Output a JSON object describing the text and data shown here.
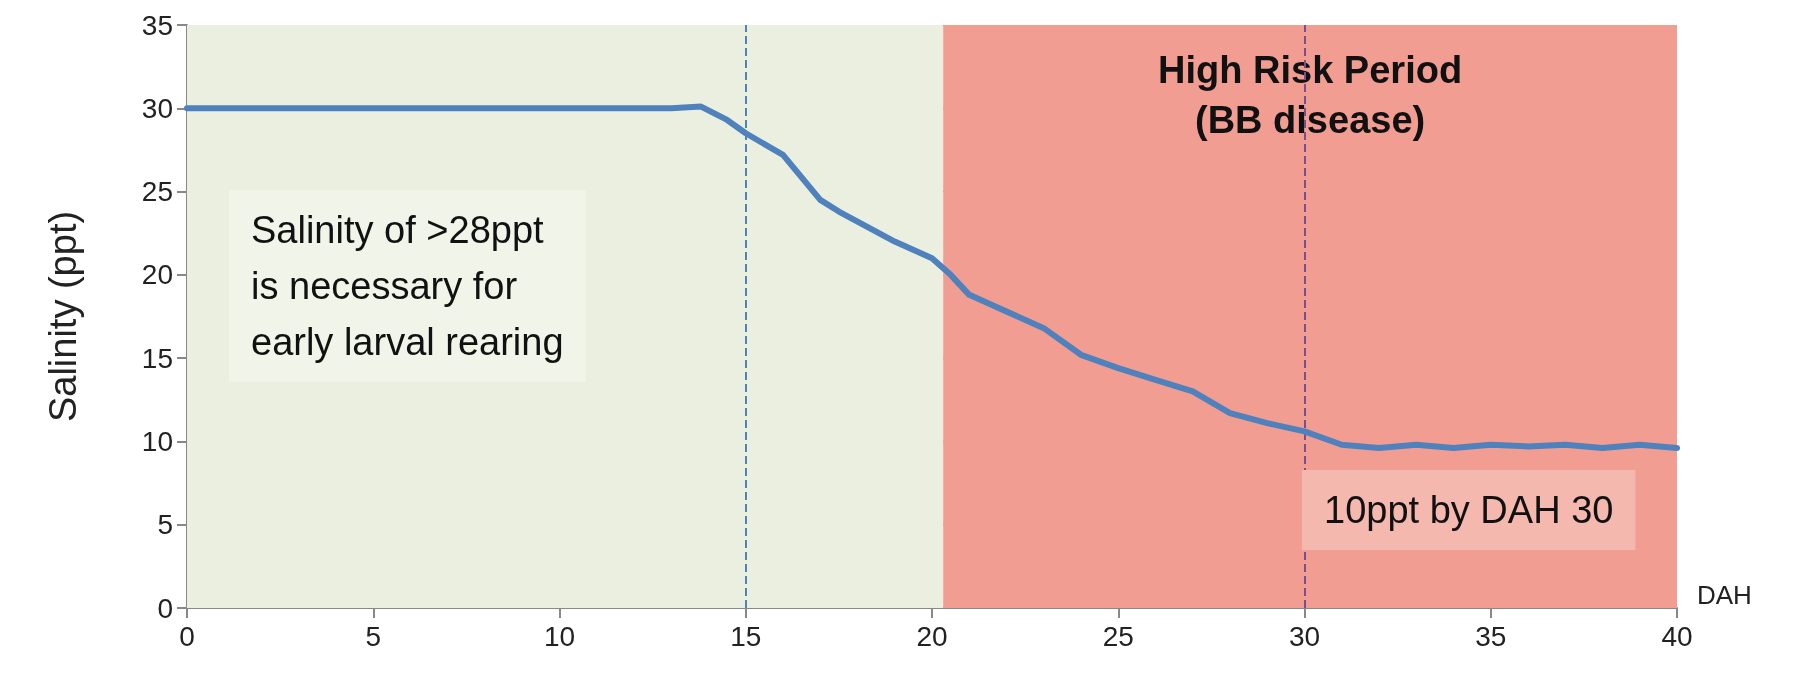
{
  "chart_data": {
    "type": "line",
    "xlabel": "DAH",
    "ylabel": "Salinity (ppt)",
    "x": [
      0,
      13,
      13.8,
      14.5,
      15,
      16,
      17,
      17.5,
      18,
      19,
      20,
      20.5,
      21,
      22,
      23,
      24,
      25,
      26,
      27,
      28,
      29,
      30,
      31,
      32,
      33,
      34,
      35,
      36,
      37,
      38,
      39,
      40
    ],
    "series": [
      {
        "color": "#4f81bd",
        "values": [
          30,
          30,
          30.1,
          29.3,
          28.5,
          27.2,
          24.5,
          23.8,
          23.2,
          22,
          21,
          20,
          18.8,
          17.8,
          16.8,
          15.2,
          14.4,
          13.7,
          13,
          11.7,
          11.1,
          10.6,
          9.8,
          9.6,
          9.8,
          9.6,
          9.8,
          9.7,
          9.8,
          9.6,
          9.8,
          9.6
        ]
      }
    ],
    "xlim": [
      0,
      40
    ],
    "xticks": [
      0,
      5,
      10,
      15,
      20,
      25,
      30,
      35,
      40
    ],
    "ylim": [
      0,
      35
    ],
    "yticks": [
      0,
      5,
      10,
      15,
      20,
      25,
      30,
      35
    ],
    "grid": "y",
    "marker": "none",
    "line_style": "solid",
    "bands": [
      {
        "axis": "x",
        "from": 0,
        "to": 20.3,
        "color": "#ebefe0"
      },
      {
        "axis": "x",
        "from": 20.3,
        "to": 40,
        "label": "High Risk Period\n(BB disease)",
        "color": "#f19d92"
      }
    ],
    "ref_lines": [
      {
        "axis": "x",
        "value": 15,
        "color": "#4f81bd",
        "line_style": "dashed"
      },
      {
        "axis": "x",
        "value": 30,
        "color": "#7a4f8f",
        "line_style": "dashed"
      }
    ],
    "annotations": [
      "Salinity of >28ppt\nis necessary for\nearly larval rearing",
      "10ppt by DAH 30"
    ]
  }
}
